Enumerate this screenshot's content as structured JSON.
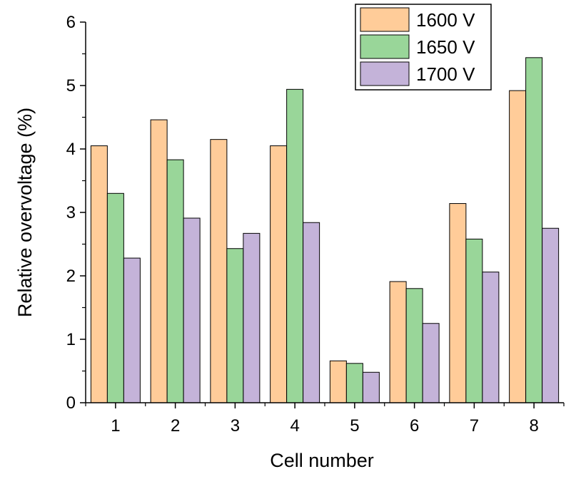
{
  "chart_data": {
    "type": "bar",
    "categories": [
      "1",
      "2",
      "3",
      "4",
      "5",
      "6",
      "7",
      "8"
    ],
    "series": [
      {
        "name": "1600 V",
        "color": "#FFCC99",
        "values": [
          4.05,
          4.46,
          4.15,
          4.05,
          0.66,
          1.91,
          3.14,
          4.92
        ]
      },
      {
        "name": "1650 V",
        "color": "#99D699",
        "values": [
          3.3,
          3.83,
          2.43,
          4.94,
          0.62,
          1.8,
          2.58,
          5.44
        ]
      },
      {
        "name": "1700 V",
        "color": "#C4B3D9",
        "values": [
          2.28,
          2.91,
          2.67,
          2.84,
          0.48,
          1.25,
          2.06,
          2.75
        ]
      }
    ],
    "xlabel": "Cell number",
    "ylabel": "Relative overvoltage (%)",
    "ylim": [
      0,
      6
    ],
    "yticks": [
      0,
      1,
      2,
      3,
      4,
      5,
      6
    ],
    "grid": false,
    "legend_position": "top-right"
  }
}
